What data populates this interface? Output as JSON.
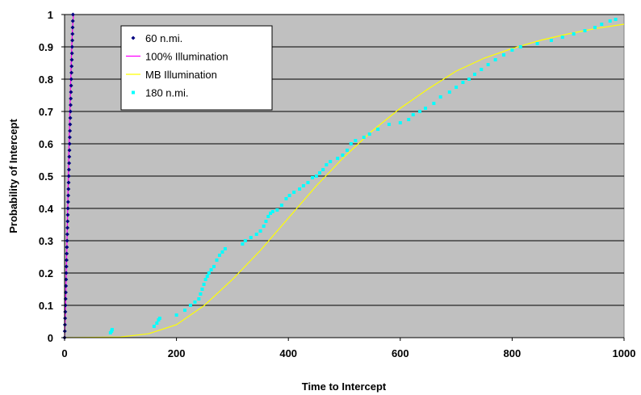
{
  "chart_data": {
    "type": "scatter",
    "xlabel": "Time to Intercept",
    "ylabel": "Probability of Intercept",
    "xlim": [
      0,
      1000
    ],
    "ylim": [
      0,
      1
    ],
    "x_ticks": [
      "0",
      "200",
      "400",
      "600",
      "800",
      "1000"
    ],
    "y_ticks": [
      "0",
      "0.1",
      "0.2",
      "0.3",
      "0.4",
      "0.5",
      "0.6",
      "0.7",
      "0.8",
      "0.9",
      "1"
    ],
    "grid": "horizontal",
    "plot_background": "#c0c0c0",
    "legend_position": "top-left",
    "series": [
      {
        "name": "60 n.mi.",
        "kind": "scatter",
        "marker": "diamond",
        "color": "#000080",
        "points": [
          [
            0,
            0.0
          ],
          [
            0.3,
            0.02
          ],
          [
            0.6,
            0.04
          ],
          [
            0.9,
            0.06
          ],
          [
            1.2,
            0.08
          ],
          [
            1.5,
            0.1
          ],
          [
            1.8,
            0.12
          ],
          [
            2.1,
            0.14
          ],
          [
            2.4,
            0.16
          ],
          [
            2.7,
            0.18
          ],
          [
            3.0,
            0.2
          ],
          [
            3.3,
            0.22
          ],
          [
            3.6,
            0.24
          ],
          [
            3.9,
            0.26
          ],
          [
            4.2,
            0.28
          ],
          [
            4.5,
            0.3
          ],
          [
            4.8,
            0.32
          ],
          [
            5.1,
            0.34
          ],
          [
            5.4,
            0.36
          ],
          [
            5.7,
            0.38
          ],
          [
            6.0,
            0.4
          ],
          [
            6.3,
            0.42
          ],
          [
            6.6,
            0.44
          ],
          [
            6.9,
            0.46
          ],
          [
            7.2,
            0.48
          ],
          [
            7.5,
            0.5
          ],
          [
            7.8,
            0.52
          ],
          [
            8.1,
            0.54
          ],
          [
            8.4,
            0.56
          ],
          [
            8.7,
            0.58
          ],
          [
            9.0,
            0.6
          ],
          [
            9.3,
            0.62
          ],
          [
            9.6,
            0.64
          ],
          [
            9.9,
            0.66
          ],
          [
            10.2,
            0.68
          ],
          [
            10.5,
            0.7
          ],
          [
            10.8,
            0.72
          ],
          [
            11.1,
            0.74
          ],
          [
            11.4,
            0.76
          ],
          [
            11.7,
            0.78
          ],
          [
            12.0,
            0.8
          ],
          [
            12.3,
            0.82
          ],
          [
            12.6,
            0.84
          ],
          [
            12.9,
            0.86
          ],
          [
            13.2,
            0.88
          ],
          [
            13.5,
            0.9
          ],
          [
            13.8,
            0.92
          ],
          [
            14.1,
            0.94
          ],
          [
            14.4,
            0.96
          ],
          [
            14.7,
            0.98
          ],
          [
            15.0,
            1.0
          ]
        ]
      },
      {
        "name": "100% Illumination",
        "kind": "line",
        "color": "#ff00ff",
        "points": [
          [
            0,
            0.0
          ],
          [
            1,
            0.05
          ],
          [
            2,
            0.12
          ],
          [
            3,
            0.2
          ],
          [
            4,
            0.28
          ],
          [
            5,
            0.36
          ],
          [
            6,
            0.44
          ],
          [
            7,
            0.52
          ],
          [
            8,
            0.6
          ],
          [
            9,
            0.67
          ],
          [
            10,
            0.74
          ],
          [
            11,
            0.8
          ],
          [
            12,
            0.86
          ],
          [
            13,
            0.91
          ],
          [
            14,
            0.95
          ],
          [
            15,
            0.98
          ],
          [
            16,
            1.0
          ]
        ]
      },
      {
        "name": "MB Illumination",
        "kind": "line",
        "color": "#ffff00",
        "points": [
          [
            0,
            0.0
          ],
          [
            100,
            0.002
          ],
          [
            150,
            0.012
          ],
          [
            200,
            0.04
          ],
          [
            250,
            0.1
          ],
          [
            300,
            0.18
          ],
          [
            350,
            0.27
          ],
          [
            400,
            0.37
          ],
          [
            450,
            0.47
          ],
          [
            500,
            0.56
          ],
          [
            550,
            0.64
          ],
          [
            600,
            0.71
          ],
          [
            650,
            0.77
          ],
          [
            700,
            0.825
          ],
          [
            750,
            0.865
          ],
          [
            800,
            0.895
          ],
          [
            850,
            0.92
          ],
          [
            900,
            0.94
          ],
          [
            950,
            0.957
          ],
          [
            1000,
            0.97
          ]
        ]
      },
      {
        "name": "180 n.mi.",
        "kind": "scatter",
        "marker": "square",
        "color": "#00ffff",
        "points": [
          [
            82,
            0.015
          ],
          [
            84,
            0.02
          ],
          [
            85,
            0.025
          ],
          [
            160,
            0.035
          ],
          [
            165,
            0.045
          ],
          [
            168,
            0.055
          ],
          [
            170,
            0.06
          ],
          [
            200,
            0.07
          ],
          [
            215,
            0.085
          ],
          [
            225,
            0.1
          ],
          [
            233,
            0.11
          ],
          [
            240,
            0.12
          ],
          [
            243,
            0.135
          ],
          [
            246,
            0.15
          ],
          [
            249,
            0.165
          ],
          [
            252,
            0.18
          ],
          [
            255,
            0.19
          ],
          [
            258,
            0.2
          ],
          [
            262,
            0.21
          ],
          [
            267,
            0.22
          ],
          [
            272,
            0.24
          ],
          [
            277,
            0.255
          ],
          [
            282,
            0.265
          ],
          [
            287,
            0.275
          ],
          [
            318,
            0.29
          ],
          [
            323,
            0.3
          ],
          [
            333,
            0.31
          ],
          [
            343,
            0.32
          ],
          [
            350,
            0.33
          ],
          [
            356,
            0.345
          ],
          [
            360,
            0.36
          ],
          [
            364,
            0.375
          ],
          [
            368,
            0.385
          ],
          [
            372,
            0.39
          ],
          [
            380,
            0.395
          ],
          [
            388,
            0.41
          ],
          [
            396,
            0.43
          ],
          [
            402,
            0.44
          ],
          [
            410,
            0.45
          ],
          [
            420,
            0.46
          ],
          [
            427,
            0.47
          ],
          [
            435,
            0.48
          ],
          [
            443,
            0.495
          ],
          [
            450,
            0.5
          ],
          [
            456,
            0.51
          ],
          [
            462,
            0.52
          ],
          [
            468,
            0.535
          ],
          [
            475,
            0.545
          ],
          [
            488,
            0.555
          ],
          [
            497,
            0.565
          ],
          [
            505,
            0.58
          ],
          [
            512,
            0.6
          ],
          [
            520,
            0.61
          ],
          [
            535,
            0.62
          ],
          [
            545,
            0.63
          ],
          [
            560,
            0.645
          ],
          [
            580,
            0.66
          ],
          [
            600,
            0.665
          ],
          [
            615,
            0.675
          ],
          [
            623,
            0.69
          ],
          [
            635,
            0.7
          ],
          [
            645,
            0.71
          ],
          [
            660,
            0.725
          ],
          [
            672,
            0.745
          ],
          [
            688,
            0.76
          ],
          [
            700,
            0.775
          ],
          [
            712,
            0.79
          ],
          [
            723,
            0.8
          ],
          [
            733,
            0.815
          ],
          [
            745,
            0.83
          ],
          [
            757,
            0.845
          ],
          [
            770,
            0.86
          ],
          [
            785,
            0.875
          ],
          [
            800,
            0.89
          ],
          [
            815,
            0.9
          ],
          [
            845,
            0.91
          ],
          [
            870,
            0.92
          ],
          [
            890,
            0.93
          ],
          [
            910,
            0.94
          ],
          [
            930,
            0.95
          ],
          [
            948,
            0.96
          ],
          [
            960,
            0.97
          ],
          [
            975,
            0.98
          ],
          [
            985,
            0.985
          ]
        ]
      }
    ]
  }
}
